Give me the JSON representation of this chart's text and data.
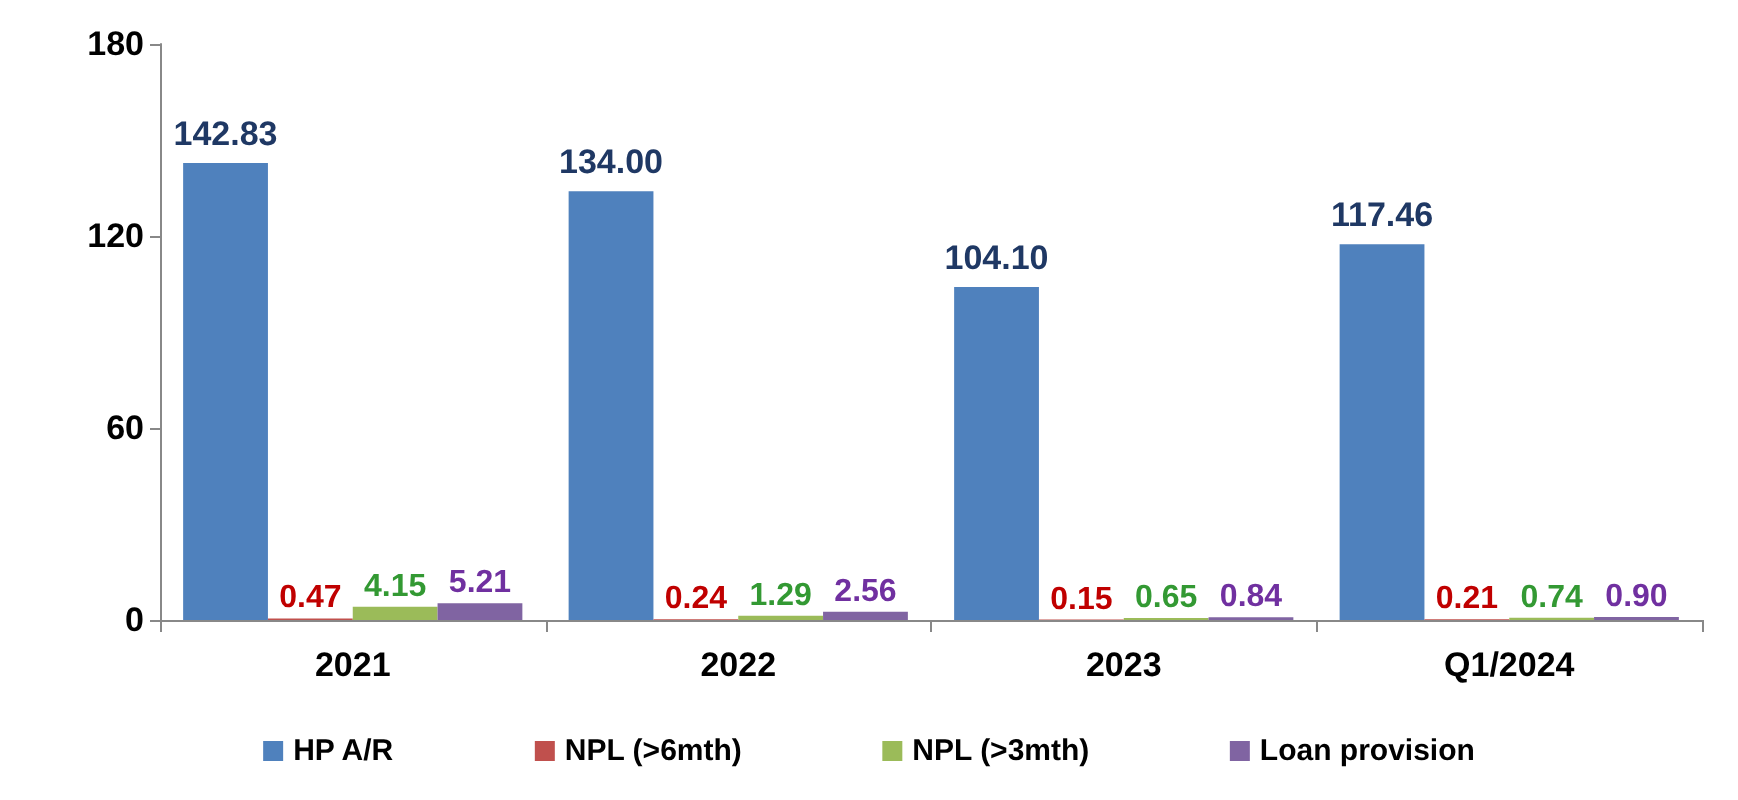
{
  "chart_data": {
    "type": "bar",
    "categories": [
      "2021",
      "2022",
      "2023",
      "Q1/2024"
    ],
    "series": [
      {
        "name": "HP A/R",
        "color": "#4f81bd",
        "values": [
          142.83,
          134.0,
          104.1,
          117.46
        ],
        "value_labels": [
          "142.83",
          "134.00",
          "104.10",
          "117.46"
        ]
      },
      {
        "name": "NPL (>6mth)",
        "color": "#c0504d",
        "values": [
          0.47,
          0.24,
          0.15,
          0.21
        ],
        "value_labels": [
          "0.47",
          "0.24",
          "0.15",
          "0.21"
        ]
      },
      {
        "name": "NPL (>3mth)",
        "color": "#9bbb59",
        "values": [
          4.15,
          1.29,
          0.65,
          0.74
        ],
        "value_labels": [
          "4.15",
          "1.29",
          "0.65",
          "0.74"
        ]
      },
      {
        "name": "Loan provision",
        "color": "#8064a2",
        "values": [
          5.21,
          2.56,
          0.84,
          0.9
        ],
        "value_labels": [
          "5.21",
          "2.56",
          "0.84",
          "0.90"
        ]
      }
    ],
    "ylim": [
      0,
      180
    ],
    "yticks": [
      0,
      60,
      120,
      180
    ],
    "grid": false,
    "legend": "bottom"
  }
}
